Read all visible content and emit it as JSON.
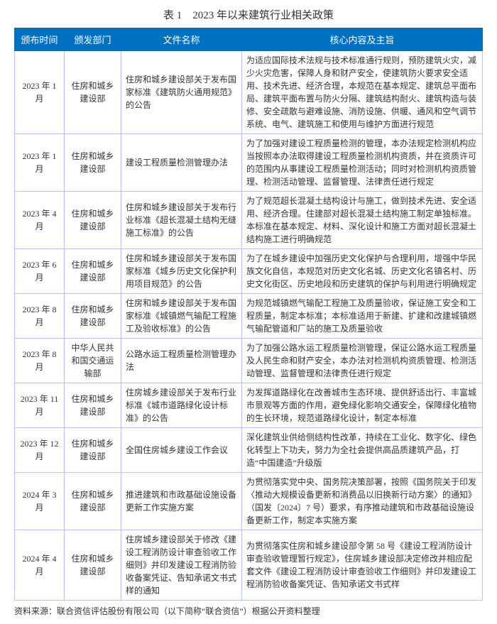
{
  "title": "表 1　2023 年以来建筑行业相关政策",
  "columns": {
    "date": "颁布时间",
    "dept": "颁发部门",
    "doc": "文件名称",
    "core": "核心内容及主旨"
  },
  "rows": [
    {
      "date": "2023 年 1 月",
      "dept": "住房和城乡建设部",
      "doc": "住房和城乡建设部关于发布国家标准《建筑防火通用规范》的公告",
      "core": "为适应国际技术法规与技术标准通行规则，预防建筑火灾，减少火灾危害，保障人身和财产安全，使建筑防火要求安全适用、技术先进、经济合理，本规范在基本规定、建筑总平面布局、建筑平面布置与防火分隔、建筑结构耐火、建筑构造与装修、安全疏散与避难设施、消防设施、供暖、通风和空气调节系统、电气、建筑施工和使用与维护方面进行规范"
    },
    {
      "date": "2023 年 1 月",
      "dept": "住房和城乡建设部",
      "doc": "建设工程质量检测管理办法",
      "core": "为了加强对建设工程质量检测的管理，本办法规定检测机构应当按照本办法取得建设工程质量检测机构资质，并在资质许可的范围内从事建设工程质量检测活动；同时对检测机构资质管理、检测活动管理、监督管理、法律责任进行规定"
    },
    {
      "date": "2023 年 4 月",
      "dept": "住房和城乡建设部",
      "doc": "住房和城乡建设部关于发布行业标准《超长混凝土结构无缝施工标准》的公告",
      "core": "为了规范超长混凝土结构设计与施工，做到技术先进、安全适用、经济合理。住建部对超长混凝土结构施工制定单独标准。本标准在基本规定、材料、深化设计和施工方面对超长混凝土结构施工进行明确规范"
    },
    {
      "date": "2023 年 6 月",
      "dept": "住房和城乡建设部",
      "doc": "住房和城乡建设部关于发布国家标准《城乡历史文化保护利用项目规范》的公告",
      "core": "为了在城乡建设中加强历史文化保护与合理利用，增强中华民族文化自信，本规范对历史文化名城、历史文化名镇名村、历史文化街区、历史地段和历史建筑的保护与利用进行明确规定"
    },
    {
      "date": "2023 年 8 月",
      "dept": "住房和城乡建设部",
      "doc": "住房和城乡建设部关于发布国家标准《城镇燃气输配工程施工及验收标准》的公告",
      "core": "为规范城镇燃气输配工程施工及质量验收，保证施工安全和工程质量，制定本标准；本标准适用于新建、扩建和改建城镇燃气输配管道和厂站的施工及质量验收"
    },
    {
      "date": "2023 年 8 月",
      "dept": "中华人民共和国交通运输部",
      "doc": "公路水运工程质量检测管理办法",
      "core": "为了加强公路水运工程质量检测管理，保证公路水运工程质量及人民生命和财产安全，本办法对检测机构资质管理、检测活动管理、监督管理和法律责任进行规定"
    },
    {
      "date": "2023 年 11 月",
      "dept": "住房和城乡建设部",
      "doc": "住房城乡建设部关于发布行业标准《城市道路绿化设计标准》的公告",
      "core": "为发挥道路绿化在改善城市生态环境、提供舒适出行、丰富城市景观等方面的作用，避免绿化影响交通安全，保障绿化植物的生长环境，规范道路绿化设计，制定本标准"
    },
    {
      "date": "2023 年 12 月",
      "dept": "住房和城乡建设部",
      "doc": "全国住房城乡建设工作会议",
      "core": "深化建筑业供给侧结构性改革，持续在工业化、数字化、绿色化转型上下功夫，努力为全社会提供高品质建筑产品，打造“中国建造”升级版"
    },
    {
      "date": "2024 年 3 月",
      "dept": "住房和城乡建设部",
      "doc": "推进建筑和市政基础设施设备更新工作实施方案",
      "core": "为贯彻落实党中央、国务院决策部署，按照《国务院关于印发〈推动大规模设备更新和消费品以旧换新行动方案〉的通知》（国发〔2024〕7 号）要求，有序推动建筑和市政基础设施设备更新工作，制定本实施方案"
    },
    {
      "date": "2024 年 4 月",
      "dept": "住房和城乡建设部",
      "doc": "住房城乡建设部关于修改《建设工程消防设计审查验收工作细则》并印发建设工程消防验收备案凭证、告知承诺文书式样的通知",
      "core": "为贯彻落实住房和城乡建设部令第 58 号《建设工程消防设计审查验收管理暂行规定》，住房城乡建设部决定修改并相应配套文件《建设工程消防设计审查验收工作细则》并印发建设工程消防验收备案凭证、告知承诺文书式样"
    }
  ],
  "source": "资料来源：联合资信评估股份有限公司（以下简称“联合资信”）根据公开资料整理",
  "header_bg": "#0070c0",
  "header_fg": "#ffffff",
  "cell_border": "#b4c6e7"
}
